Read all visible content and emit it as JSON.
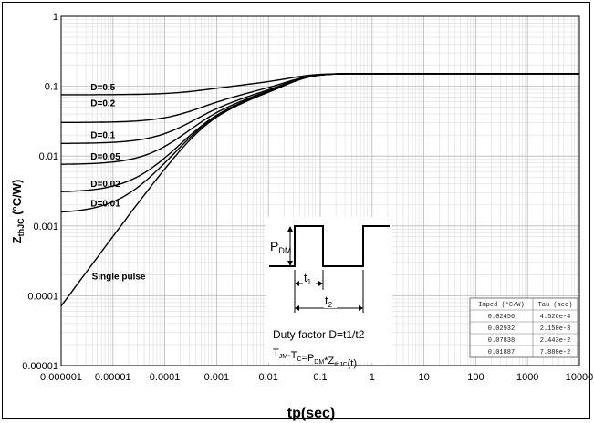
{
  "chart_data": {
    "type": "line",
    "title": "",
    "xlabel": "tp(sec)",
    "ylabel_main": "Z",
    "ylabel_sub": "thJC",
    "ylabel_unit": " (°C/W)",
    "xscale": "log",
    "yscale": "log",
    "xlim": [
      1e-06,
      10000
    ],
    "ylim": [
      1e-05,
      1
    ],
    "grid": true,
    "x_ticks": [
      "0.000001",
      "0.00001",
      "0.0001",
      "0.001",
      "0.01",
      "0.1",
      "1",
      "10",
      "100",
      "1000",
      "10000"
    ],
    "y_ticks": [
      "0.00001",
      "0.0001",
      "0.001",
      "0.01",
      "0.1",
      "1"
    ],
    "foster_model": [
      {
        "R": 0.02456,
        "tau": 0.0004526
      },
      {
        "R": 0.02932,
        "tau": 0.00215
      },
      {
        "R": 0.07838,
        "tau": 0.02443
      },
      {
        "R": 0.01887,
        "tau": 0.0788
      }
    ],
    "series": [
      {
        "name": "D=0.5",
        "D": 0.5,
        "label_x": 3.7e-06,
        "label_y": 0.088
      },
      {
        "name": "D=0.2",
        "D": 0.2,
        "label_x": 3.7e-06,
        "label_y": 0.052
      },
      {
        "name": "D=0.1",
        "D": 0.1,
        "label_x": 3.7e-06,
        "label_y": 0.018
      },
      {
        "name": "D=0.05",
        "D": 0.05,
        "label_x": 3.7e-06,
        "label_y": 0.0089
      },
      {
        "name": "D=0.02",
        "D": 0.02,
        "label_x": 3.7e-06,
        "label_y": 0.0036
      },
      {
        "name": "D=0.01",
        "D": 0.01,
        "label_x": 3.7e-06,
        "label_y": 0.0019
      },
      {
        "name": "Single pulse",
        "D": 0,
        "label_x": 3.9e-06,
        "label_y": 0.00017
      }
    ],
    "inset": {
      "pdm_main": "P",
      "pdm_sub": "DM",
      "t1_main": "t",
      "t1_sub": "1",
      "t2_main": "t",
      "t2_sub": "2",
      "duty_text": "Duty factor D=t1/t2",
      "formula": [
        {
          "t": "T",
          "s": ""
        },
        {
          "t": "JM",
          "s": "sub"
        },
        {
          "t": "-T",
          "s": ""
        },
        {
          "t": "C",
          "s": "sub"
        },
        {
          "t": "=P",
          "s": ""
        },
        {
          "t": "DM",
          "s": "sub"
        },
        {
          "t": "*Z",
          "s": ""
        },
        {
          "t": "thJC",
          "s": "sub"
        },
        {
          "t": "(t)",
          "s": ""
        }
      ]
    },
    "table": {
      "headers": [
        "Imped (°C/W)",
        "Tau (sec)"
      ],
      "rows": [
        [
          "0.02456",
          "4.526e-4"
        ],
        [
          "0.02932",
          "2.150e-3"
        ],
        [
          "0.07838",
          "2.443e-2"
        ],
        [
          "0.01887",
          "7.880e-2"
        ]
      ]
    }
  }
}
